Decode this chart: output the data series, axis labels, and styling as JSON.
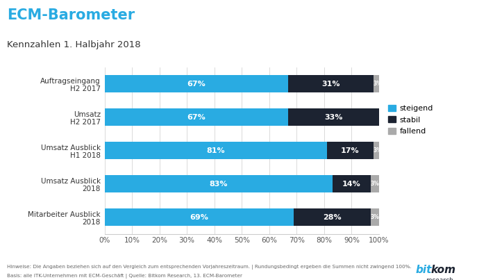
{
  "title": "ECM-Barometer",
  "subtitle": "Kennzahlen 1. Halbjahr 2018",
  "categories": [
    "Auftragseingang\nH2 2017",
    "Umsatz\nH2 2017",
    "Umsatz Ausblick\nH1 2018",
    "Umsatz Ausblick\n2018",
    "Mitarbeiter Ausblick\n2018"
  ],
  "steigend": [
    67,
    67,
    81,
    83,
    69
  ],
  "stabil": [
    31,
    33,
    17,
    14,
    28
  ],
  "fallend": [
    3,
    0,
    3,
    3,
    3
  ],
  "color_steigend": "#29ABE2",
  "color_stabil": "#1C2331",
  "color_fallend": "#AAAAAA",
  "label_steigend": "steigend",
  "label_stabil": "stabil",
  "label_fallend": "fallend",
  "footnote": "Hinweise: Die Angaben beziehen sich auf den Vergleich zum entsprechenden Vorjahreszeitraum. | Rundungsbedingt ergeben die Summen nicht zwingend 100%.",
  "footnote2": "Basis: alle ITK-Unternehmen mit ECM-Geschäft | Quelle: Bitkom Research, 13. ECM-Barometer",
  "title_color": "#29ABE2",
  "subtitle_color": "#333333",
  "bg_color": "#FFFFFF"
}
